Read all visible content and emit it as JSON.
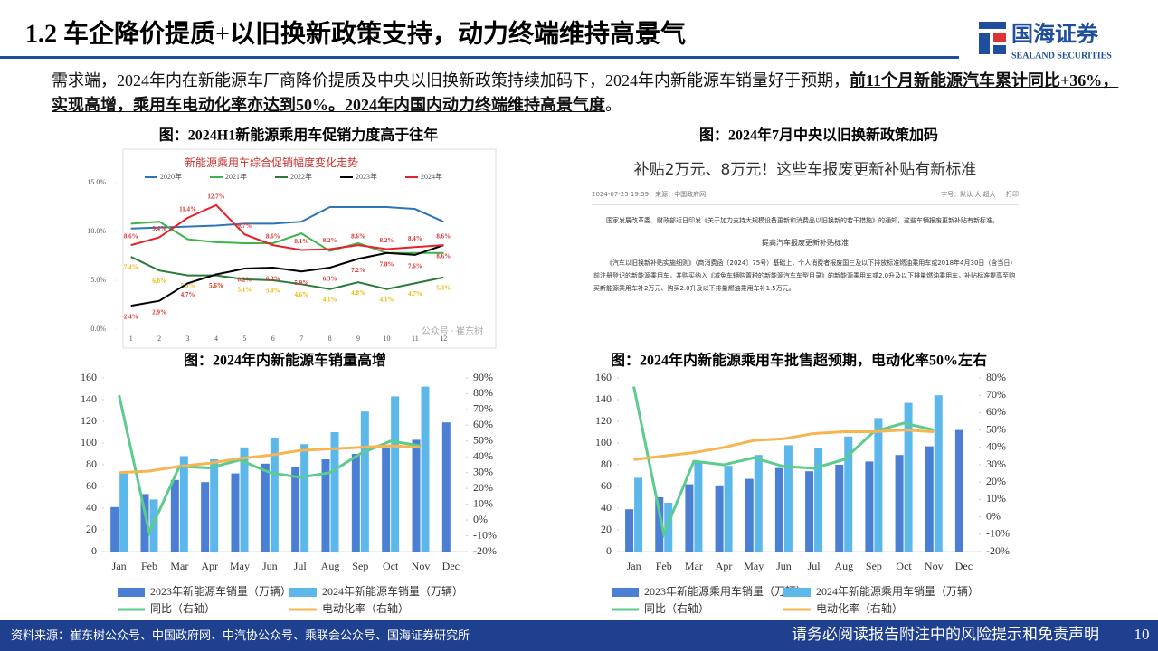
{
  "header": {
    "title": "1.2 车企降价提质+以旧换新政策支持，动力终端维持高景气",
    "logo_cn": "国海证券",
    "logo_en": "SEALAND SECURITIES"
  },
  "intro": {
    "text": "需求端，2024年内在新能源车厂商降价提质及中央以旧换新政策持续加码下，2024年内新能源车销量好于预期，",
    "emphasis": "前11个月新能源汽车累计同比+36%，实现高增，乘用车电动化率亦达到50%。2024年内国内动力终端维持高景气度",
    "end": "。"
  },
  "doc": {
    "caption": "图：2024年7月中央以旧换新政策加码",
    "title": "补贴2万元、8万元！这些车报废更新补贴有新标准",
    "meta": "2024-07-25 19:59　来源：中国政府网",
    "tools": "字号：默认 大 超大 ｜ 打印",
    "p1": "国家发展改革委、财政部近日印发《关于加力支持大规模设备更新和消费品以旧换新的若干措施》的通知，这些车辆报废更新补贴有新标准。",
    "heading": "提高汽车报废更新补贴标准",
    "p2": "《汽车以旧换新补贴实施细则》（商消费函〔2024〕75号）基础上，个人消费者报废国三及以下排放标准燃油乘用车或2018年4月30日（含当日）前注册登记的新能源乘用车，并购买纳入《减免车辆购置税的新能源汽车车型目录》的新能源乘用车或2.0升及以下排量燃油乘用车，补贴标准提高至购买新能源乘用车补2万元、购买2.0升及以下排量燃油乘用车补1.5万元。"
  },
  "chart_data": [
    {
      "type": "line",
      "caption": "图：2024H1新能源乘用车促销力度高于往年",
      "title": "新能源乘用车综合促销幅度变化走势",
      "watermark": "公众号 · 崔东树",
      "categories": [
        "1",
        "2",
        "3",
        "4",
        "5",
        "6",
        "7",
        "8",
        "9",
        "10",
        "11",
        "12"
      ],
      "ylim": [
        0,
        15
      ],
      "yticks": [
        {
          "value": 0,
          "label": "0.0%"
        },
        {
          "value": 5,
          "label": "5.0%"
        },
        {
          "value": 10,
          "label": "10.0%"
        },
        {
          "value": 15,
          "label": "15.0%"
        }
      ],
      "series": [
        {
          "name": "2020年",
          "color": "#2e75b6",
          "values": [
            10.3,
            10.4,
            10.5,
            10.6,
            10.8,
            10.8,
            11.0,
            12.5,
            12.5,
            12.5,
            12.3,
            11.0
          ]
        },
        {
          "name": "2021年",
          "color": "#3cb54a",
          "values": [
            10.8,
            11.0,
            9.2,
            8.9,
            8.8,
            8.8,
            9.8,
            8.0,
            8.8,
            7.8,
            7.8,
            7.8
          ]
        },
        {
          "name": "2022年",
          "color": "#2b7a3a",
          "label_color": "#f0b400",
          "values": [
            7.4,
            6.0,
            5.5,
            5.5,
            5.1,
            5.0,
            4.6,
            4.1,
            4.8,
            4.1,
            4.7,
            5.3
          ],
          "value_labels": [
            "7.4%",
            "6.0%",
            "5.5%",
            "5.5%",
            "5.1%",
            "5.0%",
            "4.6%",
            "4.1%",
            "4.8%",
            "4.1%",
            "4.7%",
            "5.3%"
          ]
        },
        {
          "name": "2023年",
          "color": "#000000",
          "label_color": "#e03030",
          "values": [
            2.4,
            2.9,
            4.7,
            5.6,
            6.2,
            6.3,
            5.9,
            6.3,
            7.2,
            7.8,
            7.6,
            8.6
          ],
          "value_labels": [
            "2.4%",
            "2.9%",
            "4.7%",
            "5.6%",
            "6.2%",
            "6.3%",
            "5.9%",
            "6.3%",
            "7.2%",
            "7.8%",
            "7.6%",
            "8.6%"
          ]
        },
        {
          "name": "2024年",
          "color": "#e8202a",
          "label_color": "#e03030",
          "values": [
            8.6,
            9.4,
            11.4,
            12.7,
            9.7,
            8.6,
            8.1,
            8.2,
            8.6,
            8.2,
            8.4,
            8.6
          ],
          "value_labels": [
            "8.6%",
            "9.4%",
            "11.4%",
            "12.7%",
            "9.7%",
            "8.6%",
            "8.1%",
            "8.2%",
            "8.6%",
            "8.2%",
            "8.4%",
            "8.6%"
          ]
        }
      ]
    },
    {
      "type": "combo",
      "title": "图：2024年内新能源车销量高增",
      "categories": [
        "Jan",
        "Feb",
        "Mar",
        "Apr",
        "May",
        "Jun",
        "Jul",
        "Aug",
        "Sep",
        "Oct",
        "Nov",
        "Dec"
      ],
      "ylim": [
        0,
        160
      ],
      "yticks": [
        0,
        20,
        40,
        60,
        80,
        100,
        120,
        140,
        160
      ],
      "y2lim": [
        -20,
        90
      ],
      "y2ticks": [
        {
          "value": -20,
          "label": "-20%"
        },
        {
          "value": -10,
          "label": "-10%"
        },
        {
          "value": 0,
          "label": "0%"
        },
        {
          "value": 10,
          "label": "10%"
        },
        {
          "value": 20,
          "label": "20%"
        },
        {
          "value": 30,
          "label": "30%"
        },
        {
          "value": 40,
          "label": "40%"
        },
        {
          "value": 50,
          "label": "50%"
        },
        {
          "value": 60,
          "label": "60%"
        },
        {
          "value": 70,
          "label": "70%"
        },
        {
          "value": 80,
          "label": "80%"
        },
        {
          "value": 90,
          "label": "90%"
        }
      ],
      "series": [
        {
          "name": "2023年新能源车销量（万辆）",
          "type": "bar",
          "color": "#4a7fd4",
          "values": [
            41,
            53,
            66,
            64,
            72,
            81,
            78,
            85,
            90,
            96,
            103,
            119
          ]
        },
        {
          "name": "2024年新能源车销量（万辆）",
          "type": "bar",
          "color": "#5cb8ea",
          "values": [
            72,
            48,
            88,
            85,
            96,
            105,
            99,
            110,
            129,
            143,
            152,
            null
          ]
        },
        {
          "name": "同比（右轴）",
          "type": "line",
          "axis": "y2",
          "color": "#5ccc8c",
          "values": [
            79,
            -8,
            34,
            33,
            38,
            30,
            27,
            30,
            42,
            50,
            47,
            null
          ]
        },
        {
          "name": "电动化率（右轴）",
          "type": "line",
          "axis": "y2",
          "color": "#f7b452",
          "values": [
            30,
            31,
            34,
            36,
            39,
            41,
            44,
            45,
            46,
            47,
            46,
            null
          ]
        }
      ]
    },
    {
      "type": "combo",
      "title": "图：2024年内新能源乘用车批售超预期，电动化率50%左右",
      "categories": [
        "Jan",
        "Feb",
        "Mar",
        "Apr",
        "May",
        "Jun",
        "Jul",
        "Aug",
        "Sep",
        "Oct",
        "Nov",
        "Dec"
      ],
      "ylim": [
        0,
        160
      ],
      "yticks": [
        0,
        20,
        40,
        60,
        80,
        100,
        120,
        140,
        160
      ],
      "y2lim": [
        -20,
        80
      ],
      "y2ticks": [
        {
          "value": -20,
          "label": "-20%"
        },
        {
          "value": -10,
          "label": "-10%"
        },
        {
          "value": 0,
          "label": "0%"
        },
        {
          "value": 10,
          "label": "10%"
        },
        {
          "value": 20,
          "label": "20%"
        },
        {
          "value": 30,
          "label": "30%"
        },
        {
          "value": 40,
          "label": "40%"
        },
        {
          "value": 50,
          "label": "50%"
        },
        {
          "value": 60,
          "label": "60%"
        },
        {
          "value": 70,
          "label": "70%"
        },
        {
          "value": 80,
          "label": "80%"
        }
      ],
      "series": [
        {
          "name": "2023年新能源乘用车销量（万辆）",
          "type": "bar",
          "color": "#4a7fd4",
          "values": [
            39,
            50,
            62,
            61,
            67,
            77,
            74,
            80,
            83,
            89,
            97,
            112
          ]
        },
        {
          "name": "2024年新能源乘用车销量（万辆）",
          "type": "bar",
          "color": "#5cb8ea",
          "values": [
            68,
            45,
            82,
            79,
            89,
            98,
            95,
            106,
            123,
            137,
            144,
            null
          ]
        },
        {
          "name": "同比（右轴）",
          "type": "line",
          "axis": "y2",
          "color": "#5ccc8c",
          "values": [
            75,
            -10,
            32,
            30,
            34,
            29,
            28,
            33,
            49,
            54,
            50,
            null
          ]
        },
        {
          "name": "电动化率（右轴）",
          "type": "line",
          "axis": "y2",
          "color": "#f7b452",
          "values": [
            33,
            35,
            37,
            40,
            44,
            45,
            48,
            49,
            49,
            50,
            49,
            null
          ]
        }
      ]
    }
  ],
  "footer": {
    "source": "资料来源：崔东树公众号、中国政府网、中汽协公众号、乘联会公众号、国海证券研究所",
    "notice": "请务必阅读报告附注中的风险提示和免责声明",
    "page": "10"
  }
}
